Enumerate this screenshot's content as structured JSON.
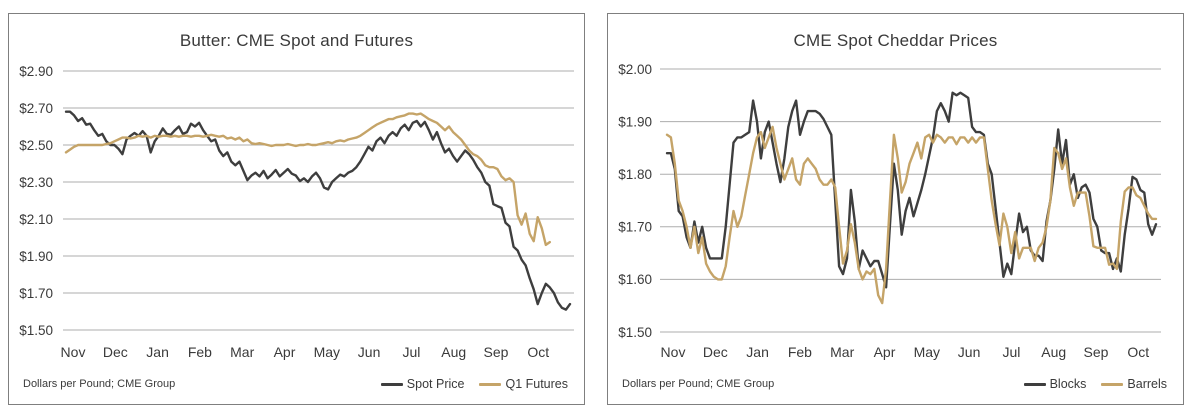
{
  "page": {
    "background": "#ffffff"
  },
  "colors": {
    "dark_line": "#3e3e3e",
    "tan_line": "#c5a468",
    "gridline": "#adadad",
    "panel_border": "#7f7f7f",
    "text": "#3a3a3a"
  },
  "chart_data": [
    {
      "type": "line",
      "title": "Butter: CME Spot and Futures",
      "footnote": "Dollars per Pound; CME Group",
      "xlabel": "",
      "ylabel": "",
      "x_tick_labels": [
        "Nov",
        "Dec",
        "Jan",
        "Feb",
        "Mar",
        "Apr",
        "May",
        "Jun",
        "Jul",
        "Aug",
        "Sep",
        "Oct"
      ],
      "y_ticks": [
        1.5,
        1.7,
        1.9,
        2.1,
        2.3,
        2.5,
        2.7,
        2.9
      ],
      "y_tick_labels": [
        "$1.50",
        "$1.70",
        "$1.90",
        "$2.10",
        "$2.30",
        "$2.50",
        "$2.70",
        "$2.90"
      ],
      "ylim": [
        1.5,
        2.98
      ],
      "grid": true,
      "legend_position": "bottom-right",
      "x_span_points": 126,
      "series": [
        {
          "name": "Spot Price",
          "color": "#3e3e3e",
          "values": [
            2.68,
            2.68,
            2.66,
            2.63,
            2.645,
            2.61,
            2.615,
            2.58,
            2.55,
            2.56,
            2.52,
            2.5,
            2.5,
            2.48,
            2.45,
            2.53,
            2.55,
            2.565,
            2.55,
            2.575,
            2.55,
            2.46,
            2.52,
            2.55,
            2.59,
            2.56,
            2.555,
            2.58,
            2.6,
            2.56,
            2.57,
            2.615,
            2.6,
            2.62,
            2.58,
            2.55,
            2.52,
            2.53,
            2.47,
            2.44,
            2.46,
            2.41,
            2.39,
            2.41,
            2.36,
            2.31,
            2.335,
            2.35,
            2.33,
            2.36,
            2.32,
            2.34,
            2.365,
            2.33,
            2.35,
            2.37,
            2.345,
            2.335,
            2.305,
            2.32,
            2.3,
            2.33,
            2.35,
            2.32,
            2.27,
            2.26,
            2.3,
            2.32,
            2.34,
            2.33,
            2.35,
            2.36,
            2.38,
            2.41,
            2.45,
            2.49,
            2.47,
            2.52,
            2.54,
            2.51,
            2.55,
            2.57,
            2.55,
            2.59,
            2.61,
            2.58,
            2.62,
            2.63,
            2.6,
            2.625,
            2.58,
            2.53,
            2.57,
            2.51,
            2.46,
            2.48,
            2.44,
            2.41,
            2.44,
            2.47,
            2.45,
            2.42,
            2.38,
            2.35,
            2.3,
            2.28,
            2.18,
            2.17,
            2.16,
            2.08,
            2.06,
            1.95,
            1.93,
            1.88,
            1.85,
            1.78,
            1.72,
            1.64,
            1.7,
            1.75,
            1.73,
            1.7,
            1.65,
            1.62,
            1.61,
            1.64
          ]
        },
        {
          "name": "Q1 Futures",
          "color": "#c5a468",
          "values": [
            2.46,
            2.475,
            2.49,
            2.5,
            2.5,
            2.5,
            2.5,
            2.5,
            2.5,
            2.5,
            2.505,
            2.51,
            2.52,
            2.53,
            2.54,
            2.54,
            2.535,
            2.54,
            2.55,
            2.545,
            2.55,
            2.54,
            2.55,
            2.545,
            2.55,
            2.55,
            2.545,
            2.55,
            2.545,
            2.55,
            2.55,
            2.545,
            2.55,
            2.55,
            2.545,
            2.55,
            2.555,
            2.55,
            2.545,
            2.55,
            2.535,
            2.54,
            2.53,
            2.54,
            2.52,
            2.53,
            2.51,
            2.505,
            2.51,
            2.505,
            2.5,
            2.495,
            2.5,
            2.5,
            2.5,
            2.505,
            2.5,
            2.495,
            2.5,
            2.5,
            2.505,
            2.5,
            2.5,
            2.505,
            2.51,
            2.515,
            2.51,
            2.52,
            2.525,
            2.52,
            2.53,
            2.535,
            2.54,
            2.55,
            2.565,
            2.58,
            2.595,
            2.61,
            2.62,
            2.63,
            2.64,
            2.64,
            2.65,
            2.655,
            2.66,
            2.67,
            2.67,
            2.665,
            2.67,
            2.655,
            2.64,
            2.63,
            2.62,
            2.6,
            2.58,
            2.6,
            2.57,
            2.55,
            2.53,
            2.5,
            2.47,
            2.45,
            2.44,
            2.42,
            2.39,
            2.38,
            2.38,
            2.37,
            2.33,
            2.31,
            2.32,
            2.3,
            2.12,
            2.07,
            2.13,
            2.02,
            1.98,
            2.11,
            2.05,
            1.96,
            1.975
          ]
        }
      ]
    },
    {
      "type": "line",
      "title": "CME Spot Cheddar Prices",
      "footnote": "Dollars per Pound; CME Group",
      "xlabel": "",
      "ylabel": "",
      "x_tick_labels": [
        "Nov",
        "Dec",
        "Jan",
        "Feb",
        "Mar",
        "Apr",
        "May",
        "Jun",
        "Jul",
        "Aug",
        "Sep",
        "Oct"
      ],
      "y_ticks": [
        1.5,
        1.6,
        1.7,
        1.8,
        1.9,
        2.0
      ],
      "y_tick_labels": [
        "$1.50",
        "$1.60",
        "$1.70",
        "$1.80",
        "$1.90",
        "$2.00"
      ],
      "ylim": [
        1.5,
        2.03
      ],
      "grid": true,
      "legend_position": "bottom-right",
      "x_span_points": 126,
      "series": [
        {
          "name": "Blocks",
          "color": "#3e3e3e",
          "values": [
            1.84,
            1.84,
            1.81,
            1.73,
            1.72,
            1.68,
            1.66,
            1.71,
            1.67,
            1.7,
            1.66,
            1.64,
            1.64,
            1.64,
            1.64,
            1.7,
            1.78,
            1.86,
            1.87,
            1.87,
            1.875,
            1.88,
            1.94,
            1.9,
            1.83,
            1.88,
            1.9,
            1.86,
            1.82,
            1.785,
            1.83,
            1.89,
            1.92,
            1.94,
            1.875,
            1.9,
            1.92,
            1.92,
            1.92,
            1.915,
            1.905,
            1.89,
            1.875,
            1.75,
            1.625,
            1.61,
            1.64,
            1.77,
            1.71,
            1.62,
            1.655,
            1.64,
            1.625,
            1.635,
            1.635,
            1.61,
            1.585,
            1.705,
            1.82,
            1.77,
            1.685,
            1.73,
            1.755,
            1.72,
            1.745,
            1.77,
            1.8,
            1.835,
            1.87,
            1.92,
            1.935,
            1.92,
            1.9,
            1.955,
            1.95,
            1.955,
            1.95,
            1.945,
            1.89,
            1.88,
            1.88,
            1.875,
            1.82,
            1.8,
            1.735,
            1.67,
            1.605,
            1.63,
            1.61,
            1.67,
            1.725,
            1.69,
            1.7,
            1.655,
            1.645,
            1.645,
            1.635,
            1.71,
            1.75,
            1.81,
            1.885,
            1.82,
            1.865,
            1.78,
            1.8,
            1.755,
            1.775,
            1.78,
            1.765,
            1.715,
            1.7,
            1.655,
            1.65,
            1.65,
            1.62,
            1.64,
            1.615,
            1.685,
            1.735,
            1.795,
            1.79,
            1.77,
            1.765,
            1.705,
            1.685,
            1.705
          ]
        },
        {
          "name": "Barrels",
          "color": "#c5a468",
          "values": [
            1.875,
            1.87,
            1.82,
            1.75,
            1.73,
            1.7,
            1.66,
            1.7,
            1.65,
            1.68,
            1.63,
            1.615,
            1.605,
            1.6,
            1.6,
            1.625,
            1.68,
            1.73,
            1.7,
            1.72,
            1.76,
            1.8,
            1.84,
            1.87,
            1.88,
            1.85,
            1.87,
            1.89,
            1.85,
            1.82,
            1.79,
            1.81,
            1.83,
            1.79,
            1.78,
            1.82,
            1.83,
            1.82,
            1.81,
            1.79,
            1.78,
            1.78,
            1.79,
            1.775,
            1.7,
            1.63,
            1.655,
            1.705,
            1.67,
            1.62,
            1.6,
            1.615,
            1.61,
            1.62,
            1.57,
            1.555,
            1.62,
            1.75,
            1.875,
            1.83,
            1.765,
            1.785,
            1.82,
            1.84,
            1.86,
            1.83,
            1.87,
            1.875,
            1.86,
            1.875,
            1.87,
            1.86,
            1.87,
            1.87,
            1.857,
            1.87,
            1.87,
            1.86,
            1.87,
            1.86,
            1.87,
            1.87,
            1.81,
            1.75,
            1.705,
            1.665,
            1.725,
            1.7,
            1.65,
            1.69,
            1.64,
            1.66,
            1.66,
            1.66,
            1.635,
            1.66,
            1.67,
            1.7,
            1.75,
            1.85,
            1.84,
            1.81,
            1.83,
            1.775,
            1.74,
            1.765,
            1.765,
            1.765,
            1.72,
            1.663,
            1.66,
            1.66,
            1.66,
            1.628,
            1.63,
            1.62,
            1.71,
            1.767,
            1.775,
            1.775,
            1.76,
            1.755,
            1.74,
            1.725,
            1.715,
            1.715
          ]
        }
      ]
    }
  ]
}
